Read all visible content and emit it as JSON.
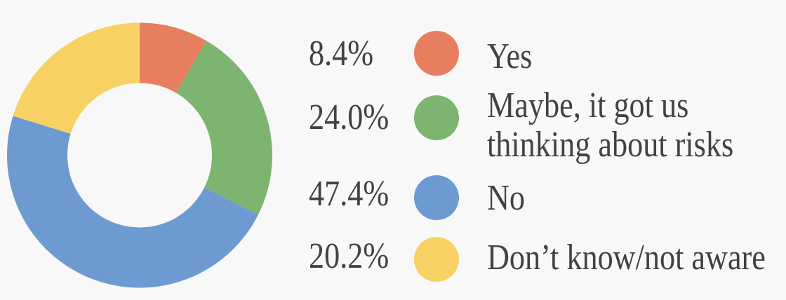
{
  "page": {
    "background_color": "#F8F8F8",
    "text_color": "#424242"
  },
  "chart_data": {
    "type": "pie",
    "subtype": "donut",
    "labels": [
      "Yes",
      "Maybe, it got us thinking about risks",
      "No",
      "Don’t know/not aware"
    ],
    "values": [
      8.4,
      24.0,
      47.4,
      20.2
    ],
    "unit": "%",
    "colors": [
      "#E77E60",
      "#7CB470",
      "#6D9AD1",
      "#F7D163"
    ],
    "start_angle": "top",
    "direction": "clockwise",
    "inner_radius_ratio": 0.545,
    "grid": "off",
    "legend_position": "right"
  },
  "legend": {
    "items": [
      {
        "percent": "8.4%",
        "label": "Yes",
        "color": "#E77E60",
        "swatch": "circle"
      },
      {
        "percent": "24.0%",
        "label": "Maybe, it got us thinking about risks",
        "color": "#7CB470",
        "swatch": "circle"
      },
      {
        "percent": "47.4%",
        "label": "No",
        "color": "#6D9AD1",
        "swatch": "circle"
      },
      {
        "percent": "20.2%",
        "label": "Don’t know/not aware",
        "color": "#F7D163",
        "swatch": "circle"
      }
    ]
  }
}
